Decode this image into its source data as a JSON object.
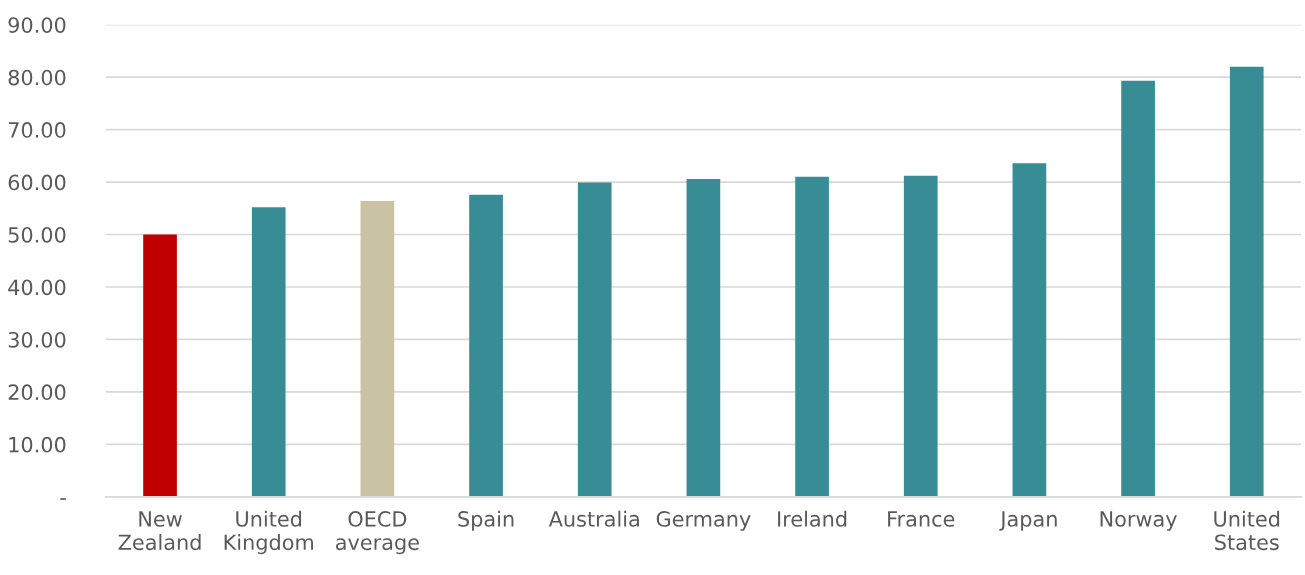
{
  "chart_data": {
    "type": "bar",
    "categories": [
      "New\nZealand",
      "United\nKingdom",
      "OECD\naverage",
      "Spain",
      "Australia",
      "Germany",
      "Ireland",
      "France",
      "Japan",
      "Norway",
      "United\nStates"
    ],
    "values": [
      50.0,
      55.2,
      56.4,
      57.6,
      59.9,
      60.6,
      61.0,
      61.2,
      63.6,
      79.3,
      82.0
    ],
    "colors": [
      "#c00000",
      "#378c95",
      "#c9c3a3",
      "#378c95",
      "#378c95",
      "#378c95",
      "#378c95",
      "#378c95",
      "#378c95",
      "#378c95",
      "#378c95"
    ],
    "ylim": [
      0,
      90
    ],
    "yticks": [
      {
        "value": 0,
        "label": "-"
      },
      {
        "value": 10,
        "label": "10.00"
      },
      {
        "value": 20,
        "label": "20.00"
      },
      {
        "value": 30,
        "label": "30.00"
      },
      {
        "value": 40,
        "label": "40.00"
      },
      {
        "value": 50,
        "label": "50.00"
      },
      {
        "value": 60,
        "label": "60.00"
      },
      {
        "value": 70,
        "label": "70.00"
      },
      {
        "value": 80,
        "label": "80.00"
      },
      {
        "value": 90,
        "label": "90.00"
      }
    ],
    "grid": "y"
  }
}
